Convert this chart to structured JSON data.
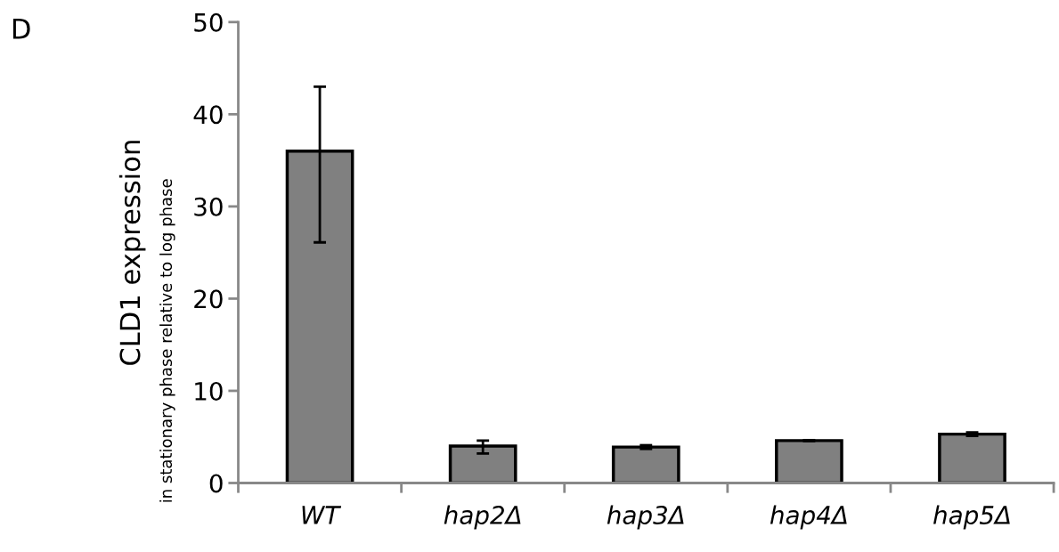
{
  "chart_data": {
    "type": "bar",
    "ylabel": "CLD1 expression",
    "annotations": [
      "D",
      "in stationary phase relative to log phase"
    ],
    "categories": [
      "WT",
      "hap2Δ",
      "hap3Δ",
      "hap4Δ",
      "hap5Δ"
    ],
    "values": [
      36.0,
      4.0,
      3.9,
      4.6,
      5.3
    ],
    "errors": [
      [
        26.1,
        43.0
      ],
      [
        3.2,
        4.6
      ],
      [
        3.7,
        4.1
      ],
      [
        4.55,
        4.65
      ],
      [
        5.1,
        5.5
      ]
    ],
    "color": "#808080",
    "ylim": [
      0,
      50
    ],
    "yticks": [
      0,
      10,
      20,
      30,
      40,
      50
    ],
    "grid": false,
    "legend": false
  }
}
